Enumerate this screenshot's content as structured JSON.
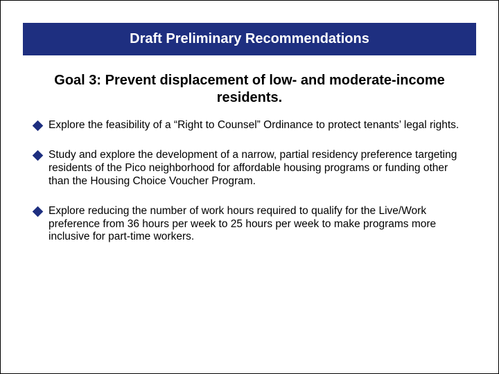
{
  "colors": {
    "title_bar_bg": "#1e2f80",
    "title_bar_text": "#ffffff",
    "bullet_diamond": "#1e2f80",
    "body_text": "#000000",
    "background": "#ffffff"
  },
  "typography": {
    "title_fontsize": 20,
    "title_weight": "bold",
    "goal_fontsize": 20,
    "goal_weight": "bold",
    "bullet_fontsize": 15.5
  },
  "title": "Draft Preliminary Recommendations",
  "goal": "Goal 3: Prevent displacement of low- and moderate-income residents.",
  "bullets": [
    "Explore the feasibility of a “Right to Counsel” Ordinance to protect tenants’ legal rights.",
    "Study and explore the development of a narrow, partial residency preference targeting residents of the Pico neighborhood for affordable housing programs or funding other than the Housing Choice Voucher Program.",
    "Explore reducing the number of work hours required to qualify for the Live/Work preference from 36 hours per week to 25 hours per week to make programs more inclusive for part-time workers."
  ]
}
